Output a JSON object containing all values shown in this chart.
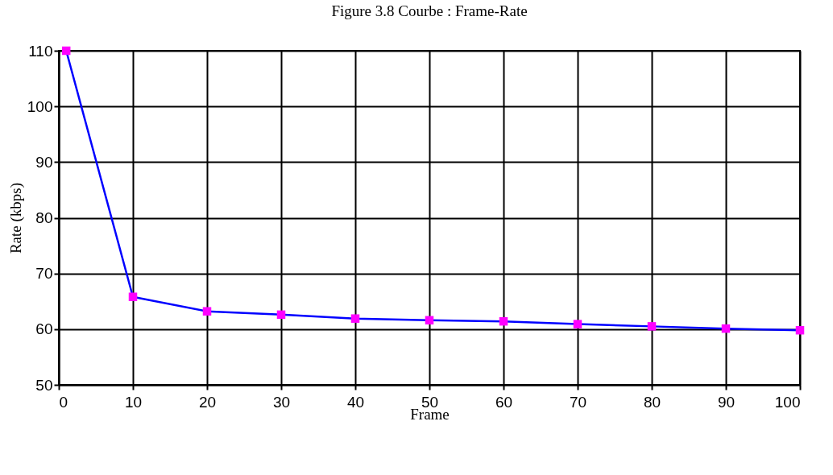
{
  "chart_data": {
    "type": "line",
    "title": "Figure 3.8 Courbe : Frame-Rate",
    "xlabel": "Frame",
    "ylabel": "Rate (kbps)",
    "x": [
      1,
      10,
      20,
      30,
      40,
      50,
      60,
      70,
      80,
      90,
      100
    ],
    "series": [
      {
        "color": "#0000ff",
        "colors": [
          "#ff00ff",
          "#ff00ff",
          "#ff00ff",
          "#ff00ff",
          "#ff00ff",
          "#ff00ff",
          "#ff00ff",
          "#ff00ff",
          "#ff00ff",
          "#ff00ff",
          "#ff00ff"
        ],
        "values": [
          110,
          65.8,
          63.2,
          62.6,
          61.9,
          61.6,
          61.4,
          60.9,
          60.5,
          60.1,
          59.8
        ]
      }
    ],
    "xlim": [
      0,
      100
    ],
    "xticks": [
      0,
      10,
      20,
      30,
      40,
      50,
      60,
      70,
      80,
      90,
      100
    ],
    "ylim": [
      50,
      110
    ],
    "yticks": [
      50,
      60,
      70,
      80,
      90,
      100,
      110
    ],
    "grid": true,
    "legend": false,
    "marker": "square",
    "line_style": "solid"
  }
}
